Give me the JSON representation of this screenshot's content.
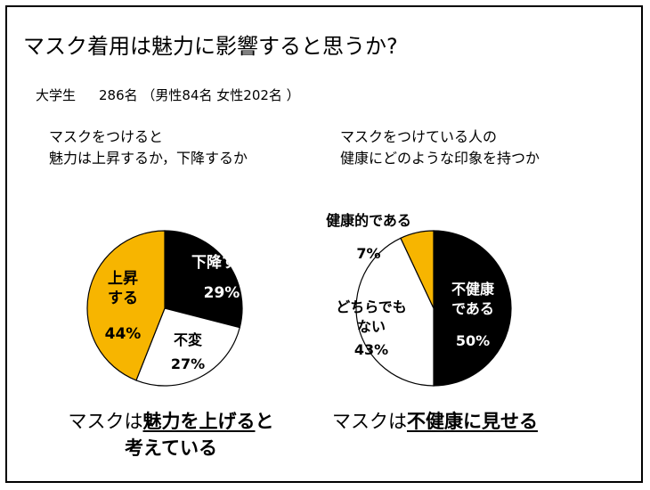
{
  "title": "マスク着用は魅力に影響すると思うか?",
  "subtitle": {
    "group": "大学生",
    "detail": "286名 （男性84名 女性202名 ）"
  },
  "questions": {
    "left": [
      "マスクをつけると",
      "魅力は上昇するか，下降するか"
    ],
    "right": [
      "マスクをつけている人の",
      "健康にどのような印象を持つか"
    ]
  },
  "conclusions": {
    "left": {
      "prefix": "マスクは",
      "emphasis": "魅力を上げる",
      "suffix": "と",
      "line2": "考えている"
    },
    "right": {
      "prefix": "マスクは",
      "emphasis": "不健康に見せる"
    }
  },
  "colors": {
    "black": "#000000",
    "white": "#ffffff",
    "gold": "#f7b500"
  },
  "chart_data": [
    {
      "type": "pie",
      "slices": [
        {
          "label": [
            "下降する"
          ],
          "value": 29,
          "value_label": "29%",
          "color": "#000000"
        },
        {
          "label": [
            "不変"
          ],
          "value": 27,
          "value_label": "27%",
          "color": "#ffffff"
        },
        {
          "label": [
            "上昇",
            "する"
          ],
          "value": 44,
          "value_label": "44%",
          "color": "#f7b500"
        }
      ]
    },
    {
      "type": "pie",
      "slices": [
        {
          "label": [
            "不健康",
            "である"
          ],
          "value": 50,
          "value_label": "50%",
          "color": "#000000"
        },
        {
          "label": [
            "どちらでも",
            "ない"
          ],
          "value": 43,
          "value_label": "43%",
          "color": "#ffffff"
        },
        {
          "label": [
            "健康的である"
          ],
          "value": 7,
          "value_label": "7%",
          "color": "#f7b500"
        }
      ]
    }
  ]
}
